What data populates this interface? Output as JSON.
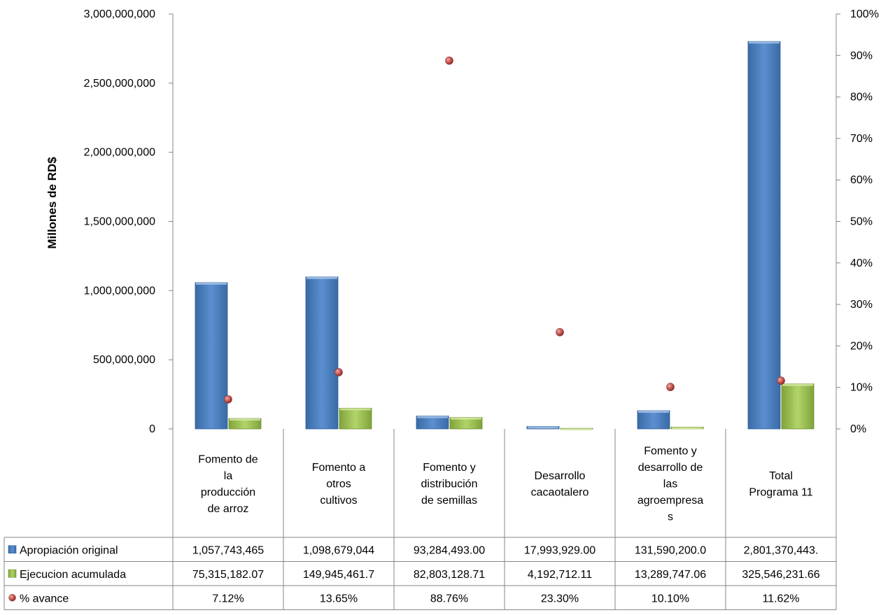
{
  "chart_data": {
    "type": "bar",
    "ylabel": "Millones de RD$",
    "ylim": [
      0,
      3000000000
    ],
    "y2lim": [
      0,
      1
    ],
    "y_ticks": [
      "0",
      "500,000,000",
      "1,000,000,000",
      "1,500,000,000",
      "2,000,000,000",
      "2,500,000,000",
      "3,000,000,000"
    ],
    "y2_ticks": [
      "0%",
      "10%",
      "20%",
      "30%",
      "40%",
      "50%",
      "60%",
      "70%",
      "80%",
      "90%",
      "100%"
    ],
    "categories": [
      "Fomento de la producción de arroz",
      "Fomento a otros cultivos",
      "Fomento y distribución de semillas",
      "Desarrollo cacaotalero",
      "Fomento y desarrollo de las agroempresas",
      "Total Programa 11"
    ],
    "category_lines": [
      [
        "Fomento de",
        "la",
        "producción",
        "de arroz"
      ],
      [
        "Fomento a",
        "otros",
        "cultivos"
      ],
      [
        "Fomento y",
        "distribución",
        "de semillas"
      ],
      [
        "Desarrollo",
        "cacaotalero"
      ],
      [
        "Fomento y",
        "desarrollo de",
        "las",
        "agroempresa",
        "s"
      ],
      [
        "Total",
        "Programa 11"
      ]
    ],
    "series": [
      {
        "name": "Apropiación original",
        "axis": "left",
        "color": "#4f81bd",
        "values": [
          1057743465,
          1098679044,
          93284493.0,
          17993929.0,
          131590200.0,
          2801370443
        ],
        "labels": [
          "1,057,743,465",
          "1,098,679,044",
          "93,284,493.00",
          "17,993,929.00",
          "131,590,200.0",
          "2,801,370,443."
        ]
      },
      {
        "name": "Ejecucion acumulada",
        "axis": "left",
        "color": "#9bbb59",
        "values": [
          75315182.07,
          149945461.7,
          82803128.71,
          4192712.11,
          13289747.06,
          325546231.66
        ],
        "labels": [
          "75,315,182.07",
          "149,945,461.7",
          "82,803,128.71",
          "4,192,712.11",
          "13,289,747.06",
          "325,546,231.66"
        ]
      },
      {
        "name": "% avance",
        "axis": "right",
        "type": "scatter",
        "color": "#c0504d",
        "values": [
          0.0712,
          0.1365,
          0.8876,
          0.233,
          0.101,
          0.1162
        ],
        "labels": [
          "7.12%",
          "13.65%",
          "88.76%",
          "23.30%",
          "10.10%",
          "11.62%"
        ]
      }
    ],
    "legend": "data-table"
  }
}
